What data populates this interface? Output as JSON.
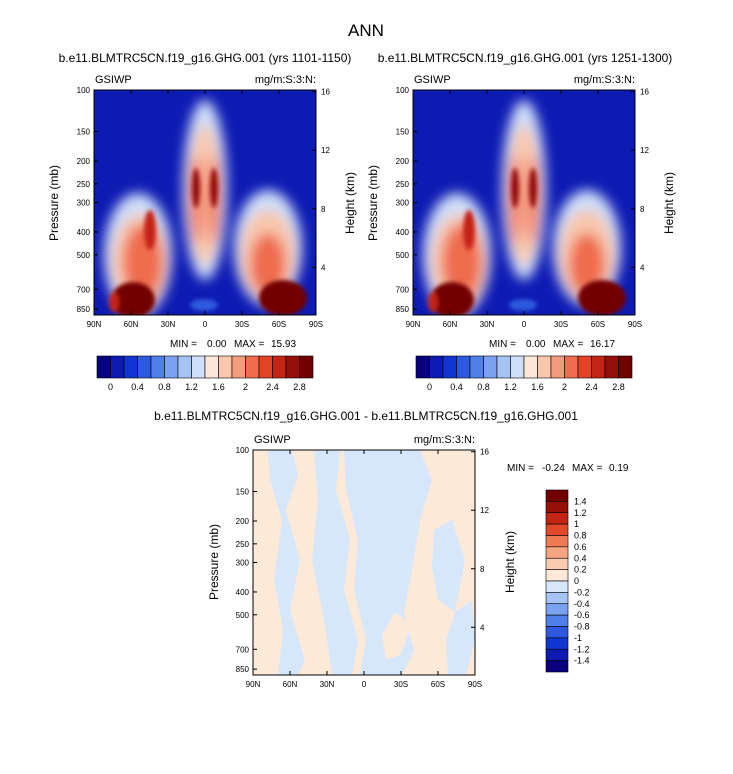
{
  "title": "ANN",
  "colors": {
    "abs_scale": [
      "#08007d",
      "#0d1bb3",
      "#1035d1",
      "#2e59df",
      "#4f7fe9",
      "#7aa2f0",
      "#a5c3f5",
      "#cfdef9",
      "#fce6d7",
      "#f8c7ae",
      "#f49c7e",
      "#ef6c4d",
      "#e24327",
      "#c42414",
      "#951008",
      "#730000"
    ],
    "diff_scale": [
      "#08007d",
      "#0d1bb3",
      "#1035d1",
      "#2e59df",
      "#4f7fe9",
      "#7aa2f0",
      "#a5c3f5",
      "#d7e7fb",
      "#fde9d8",
      "#f9cbb1",
      "#f5a582",
      "#f07a55",
      "#e2492b",
      "#c42414",
      "#951008",
      "#730000"
    ]
  },
  "panels": {
    "p1": {
      "subtitle": "b.e11.BLMTRC5CN.f19_g16.GHG.001 (yrs 1101-1150)",
      "left_label": "GSIWP",
      "right_label": "mg/m:S:3:N:",
      "ylabel": "Pressure (mb)",
      "y2label": "Height (km)",
      "min_label": "MIN =",
      "min_value": "0.00",
      "max_label": "MAX =",
      "max_value": "15.93"
    },
    "p2": {
      "subtitle": "b.e11.BLMTRC5CN.f19_g16.GHG.001 (yrs 1251-1300)",
      "left_label": "GSIWP",
      "right_label": "mg/m:S:3:N:",
      "ylabel": "Pressure (mb)",
      "y2label": "Height (km)",
      "min_label": "MIN =",
      "min_value": "0.00",
      "max_label": "MAX =",
      "max_value": "16.17"
    },
    "p3": {
      "subtitle": "b.e11.BLMTRC5CN.f19_g16.GHG.001 - b.e11.BLMTRC5CN.f19_g16.GHG.001",
      "left_label": "GSIWP",
      "right_label": "mg/m:S:3:N:",
      "ylabel": "Pressure (mb)",
      "y2label": "Height (km)",
      "min_label": "MIN =",
      "min_value": "-0.24",
      "max_label": "MAX =",
      "max_value": "0.19"
    }
  },
  "chart_data": [
    {
      "type": "heatmap",
      "name": "p1",
      "x_ticks": [
        "90N",
        "60N",
        "30N",
        "0",
        "30S",
        "60S",
        "90S"
      ],
      "x_tick_values": [
        90,
        60,
        30,
        0,
        -30,
        -60,
        -90
      ],
      "y_ticks": [
        "100",
        "150",
        "200",
        "250",
        "300",
        "400",
        "500",
        "700",
        "850"
      ],
      "y_tick_values": [
        100,
        150,
        200,
        250,
        300,
        400,
        500,
        700,
        850
      ],
      "y_range": [
        100,
        900
      ],
      "y_scale": "log",
      "y2_ticks": [
        "16",
        "12",
        "8",
        "4"
      ],
      "y2_tick_values": [
        16,
        12,
        8,
        4
      ],
      "colorbar_labels": [
        "0",
        "0.4",
        "0.8",
        "1.2",
        "1.6",
        "2",
        "2.4",
        "2.8"
      ],
      "colorbar_levels": [
        0,
        0.2,
        0.4,
        0.6,
        0.8,
        1.0,
        1.2,
        1.4,
        1.6,
        1.8,
        2.0,
        2.2,
        2.4,
        2.6,
        2.8
      ],
      "min": 0.0,
      "max": 15.93
    },
    {
      "type": "heatmap",
      "name": "p2",
      "x_ticks": [
        "90N",
        "60N",
        "30N",
        "0",
        "30S",
        "60S",
        "90S"
      ],
      "x_tick_values": [
        90,
        60,
        30,
        0,
        -30,
        -60,
        -90
      ],
      "y_ticks": [
        "100",
        "150",
        "200",
        "250",
        "300",
        "400",
        "500",
        "700",
        "850"
      ],
      "y_tick_values": [
        100,
        150,
        200,
        250,
        300,
        400,
        500,
        700,
        850
      ],
      "y_range": [
        100,
        900
      ],
      "y_scale": "log",
      "y2_ticks": [
        "16",
        "12",
        "8",
        "4"
      ],
      "y2_tick_values": [
        16,
        12,
        8,
        4
      ],
      "colorbar_labels": [
        "0",
        "0.4",
        "0.8",
        "1.2",
        "1.6",
        "2",
        "2.4",
        "2.8"
      ],
      "colorbar_levels": [
        0,
        0.2,
        0.4,
        0.6,
        0.8,
        1.0,
        1.2,
        1.4,
        1.6,
        1.8,
        2.0,
        2.2,
        2.4,
        2.6,
        2.8
      ],
      "min": 0.0,
      "max": 16.17
    },
    {
      "type": "heatmap",
      "name": "p3",
      "x_ticks": [
        "90N",
        "60N",
        "30N",
        "0",
        "30S",
        "60S",
        "90S"
      ],
      "x_tick_values": [
        90,
        60,
        30,
        0,
        -30,
        -60,
        -90
      ],
      "y_ticks": [
        "100",
        "150",
        "200",
        "250",
        "300",
        "400",
        "500",
        "700",
        "850"
      ],
      "y_tick_values": [
        100,
        150,
        200,
        250,
        300,
        400,
        500,
        700,
        850
      ],
      "y_range": [
        100,
        900
      ],
      "y_scale": "log",
      "y2_ticks": [
        "16",
        "12",
        "8",
        "4"
      ],
      "y2_tick_values": [
        16,
        12,
        8,
        4
      ],
      "colorbar_labels": [
        "1.4",
        "1.2",
        "1",
        "0.8",
        "0.6",
        "0.4",
        "0.2",
        "0",
        "-0.2",
        "-0.4",
        "-0.6",
        "-0.8",
        "-1",
        "-1.2",
        "-1.4"
      ],
      "colorbar_levels": [
        1.4,
        1.2,
        1.0,
        0.8,
        0.6,
        0.4,
        0.2,
        0,
        -0.2,
        -0.4,
        -0.6,
        -0.8,
        -1.0,
        -1.2,
        -1.4
      ],
      "min": -0.24,
      "max": 0.19
    }
  ]
}
